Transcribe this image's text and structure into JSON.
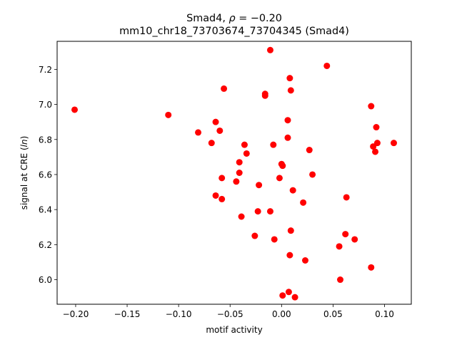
{
  "chart_data": {
    "type": "scatter",
    "title_prefix": "Smad4, ",
    "title_rho_symbol": "ρ",
    "title_rho_value": " = −0.20",
    "subtitle": "mm10_chr18_73703674_73704345 (Smad4)",
    "xlabel": "motif activity",
    "ylabel_prefix": "signal at CRE (",
    "ylabel_italic": "ln",
    "ylabel_suffix": ")",
    "xlim": [
      -0.218,
      0.126
    ],
    "ylim": [
      5.86,
      7.36
    ],
    "xticks": [
      -0.2,
      -0.15,
      -0.1,
      -0.05,
      0.0,
      0.05,
      0.1
    ],
    "xtick_labels": [
      "−0.20",
      "−0.15",
      "−0.10",
      "−0.05",
      "0.00",
      "0.05",
      "0.10"
    ],
    "yticks": [
      6.0,
      6.2,
      6.4,
      6.6,
      6.8,
      7.0,
      7.2
    ],
    "ytick_labels": [
      "6.0",
      "6.2",
      "6.4",
      "6.6",
      "6.8",
      "7.0",
      "7.2"
    ],
    "grid": false,
    "marker_color": "#ff0000",
    "points": [
      {
        "x": -0.201,
        "y": 6.97
      },
      {
        "x": -0.11,
        "y": 6.94
      },
      {
        "x": -0.081,
        "y": 6.84
      },
      {
        "x": -0.068,
        "y": 6.78
      },
      {
        "x": -0.064,
        "y": 6.9
      },
      {
        "x": -0.064,
        "y": 6.48
      },
      {
        "x": -0.06,
        "y": 6.85
      },
      {
        "x": -0.058,
        "y": 6.58
      },
      {
        "x": -0.058,
        "y": 6.46
      },
      {
        "x": -0.056,
        "y": 7.09
      },
      {
        "x": -0.044,
        "y": 6.56
      },
      {
        "x": -0.041,
        "y": 6.67
      },
      {
        "x": -0.041,
        "y": 6.61
      },
      {
        "x": -0.039,
        "y": 6.36
      },
      {
        "x": -0.036,
        "y": 6.77
      },
      {
        "x": -0.034,
        "y": 6.72
      },
      {
        "x": -0.026,
        "y": 6.25
      },
      {
        "x": -0.023,
        "y": 6.39
      },
      {
        "x": -0.022,
        "y": 6.54
      },
      {
        "x": -0.016,
        "y": 7.06
      },
      {
        "x": -0.016,
        "y": 7.05
      },
      {
        "x": -0.011,
        "y": 7.31
      },
      {
        "x": -0.011,
        "y": 6.39
      },
      {
        "x": -0.008,
        "y": 6.77
      },
      {
        "x": -0.007,
        "y": 6.23
      },
      {
        "x": -0.002,
        "y": 6.58
      },
      {
        "x": 0.0,
        "y": 6.66
      },
      {
        "x": 0.001,
        "y": 6.65
      },
      {
        "x": 0.001,
        "y": 5.91
      },
      {
        "x": 0.006,
        "y": 6.91
      },
      {
        "x": 0.006,
        "y": 6.81
      },
      {
        "x": 0.007,
        "y": 5.93
      },
      {
        "x": 0.008,
        "y": 7.15
      },
      {
        "x": 0.008,
        "y": 6.14
      },
      {
        "x": 0.009,
        "y": 7.08
      },
      {
        "x": 0.009,
        "y": 6.28
      },
      {
        "x": 0.011,
        "y": 6.51
      },
      {
        "x": 0.013,
        "y": 5.9
      },
      {
        "x": 0.021,
        "y": 6.44
      },
      {
        "x": 0.023,
        "y": 6.11
      },
      {
        "x": 0.027,
        "y": 6.74
      },
      {
        "x": 0.03,
        "y": 6.6
      },
      {
        "x": 0.044,
        "y": 7.22
      },
      {
        "x": 0.056,
        "y": 6.19
      },
      {
        "x": 0.057,
        "y": 6.0
      },
      {
        "x": 0.062,
        "y": 6.26
      },
      {
        "x": 0.063,
        "y": 6.47
      },
      {
        "x": 0.071,
        "y": 6.23
      },
      {
        "x": 0.087,
        "y": 6.99
      },
      {
        "x": 0.087,
        "y": 6.07
      },
      {
        "x": 0.089,
        "y": 6.76
      },
      {
        "x": 0.091,
        "y": 6.73
      },
      {
        "x": 0.092,
        "y": 6.87
      },
      {
        "x": 0.093,
        "y": 6.78
      },
      {
        "x": 0.109,
        "y": 6.78
      }
    ]
  }
}
